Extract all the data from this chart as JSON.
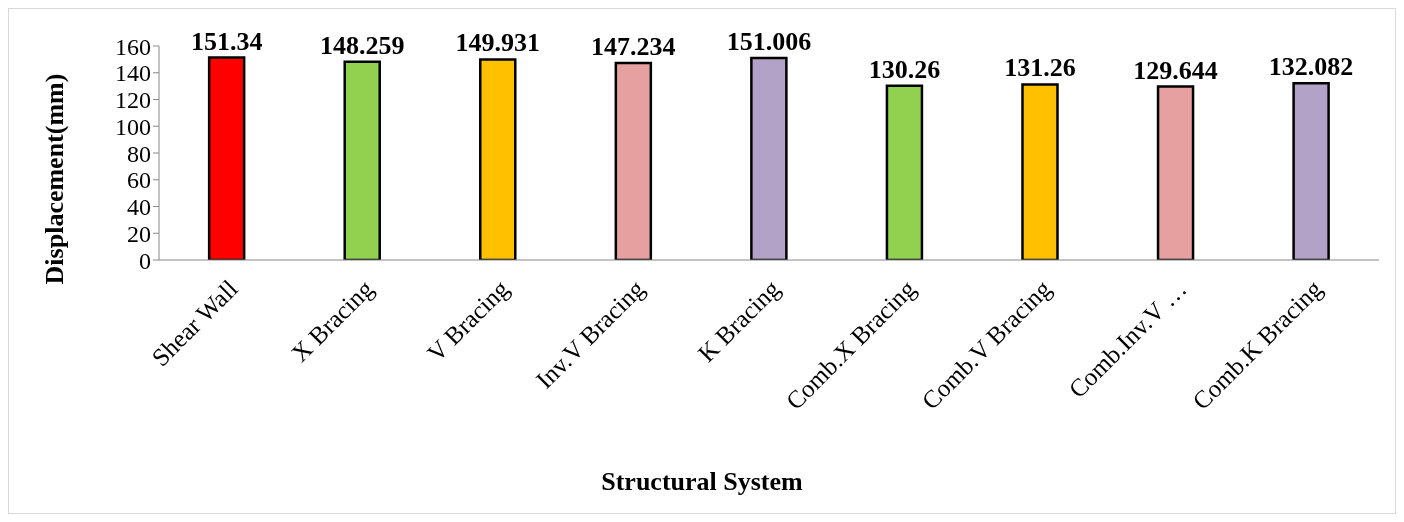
{
  "chart_data": {
    "type": "bar",
    "xlabel": "Structural System",
    "ylabel": "Displacement(mm)",
    "categories": [
      "Shear Wall",
      "X Bracing",
      "V Bracing",
      "Inv.V  Bracing",
      "K Bracing",
      "Comb.X Bracing",
      "Comb.V Bracing",
      "Comb.Inv.V …",
      "Comb.K Bracing"
    ],
    "values": [
      151.34,
      148.259,
      149.931,
      147.234,
      151.006,
      130.26,
      131.26,
      129.644,
      132.082
    ],
    "colors": [
      "#ff0000",
      "#92d050",
      "#ffc000",
      "#e6a0a0",
      "#b3a2c7",
      "#92d050",
      "#ffc000",
      "#e6a0a0",
      "#b3a2c7"
    ],
    "ylim": [
      0,
      160
    ],
    "yticks": [
      0,
      20,
      40,
      60,
      80,
      100,
      120,
      140,
      160
    ],
    "grid": false,
    "legend": false,
    "data_labels": true
  }
}
